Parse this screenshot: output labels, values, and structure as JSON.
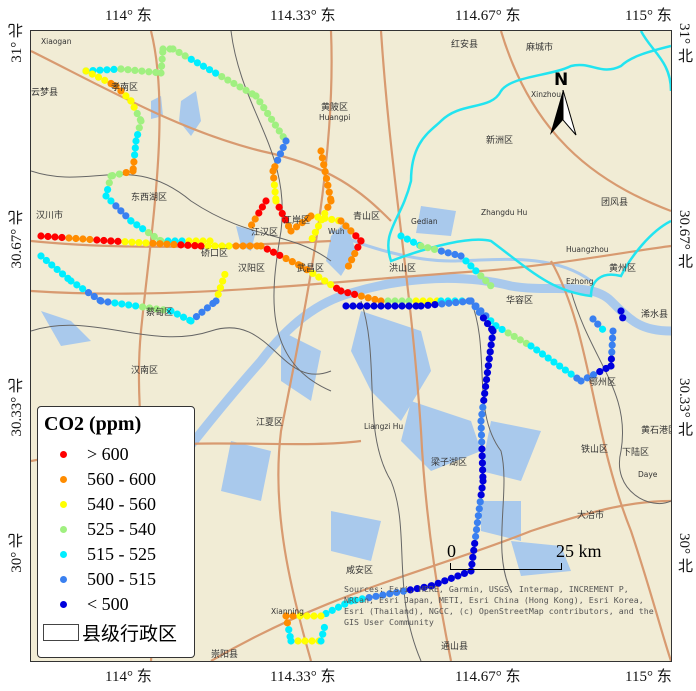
{
  "axes": {
    "top": [
      "114° 东",
      "114.33° 东",
      "114.67° 东",
      "115° 东"
    ],
    "bottom": [
      "114° 东",
      "114.33° 东",
      "114.67° 东",
      "115° 东"
    ],
    "left": [
      "31° 北",
      "30.67° 北",
      "30.33° 北",
      "30° 北"
    ],
    "right": [
      "31° 北",
      "30.67° 北",
      "30.33° 北",
      "30° 北"
    ]
  },
  "legend": {
    "title": "CO2 (ppm)",
    "classes": [
      {
        "label": "> 600",
        "color": "#ff0000"
      },
      {
        "label": "560 - 600",
        "color": "#ff8c00"
      },
      {
        "label": "540 - 560",
        "color": "#ffff00"
      },
      {
        "label": "525 - 540",
        "color": "#a0f080"
      },
      {
        "label": "515 - 525",
        "color": "#00eeff"
      },
      {
        "label": "500 - 515",
        "color": "#3a80f0"
      },
      {
        "label": "< 500",
        "color": "#0000dd"
      }
    ],
    "boundary_label": "县级行政区"
  },
  "north_arrow": "N",
  "scale": {
    "start": "0",
    "end": "25 km"
  },
  "attribution": "Sources: Esri, HERE, Garmin, USGS, Intermap, INCREMENT P, NRCan, Esri Japan, METI, Esri China (Hong Kong), Esri Korea, Esri (Thailand), NGCC, (c) OpenStreetMap contributors, and the GIS User Community",
  "colors": {
    "land": "#f1ecd5",
    "water": "#a9c9ec",
    "road": "#d89a70",
    "boundary": "#666666",
    "highlight": "#22e4f0"
  },
  "labels": [
    "Xiaogan",
    "云梦县",
    "孝南区",
    "汉川市",
    "东西湖区",
    "黄陂区",
    "Huangpi",
    "红安县",
    "麻城市",
    "Xinzhou",
    "新洲区",
    "团风县",
    "Gedian",
    "Zhangdu Hu",
    "江岸区",
    "江汉区",
    "硚口区",
    "Wuh",
    "青山区",
    "汉阳区",
    "武昌区",
    "洪山区",
    "蔡甸区",
    "Huangzhou",
    "Ezhong",
    "黄州区",
    "浠水县",
    "华容区",
    "鄂州区",
    "汉南区",
    "江夏区",
    "黄石港区",
    "铁山区",
    "下陆区",
    "Daye",
    "大冶市",
    "梁子湖区",
    "咸安区",
    "Liangzi Hu",
    "Xianning",
    "通山县",
    "崇阳县"
  ]
}
